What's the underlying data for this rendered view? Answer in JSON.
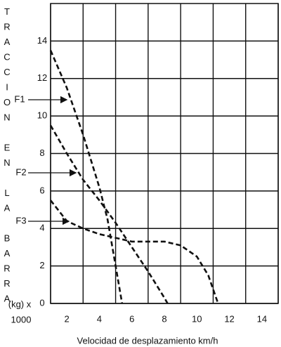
{
  "chart_data": {
    "type": "line",
    "ylabel": "TRACCION EN LA BARRA",
    "ylabel_unit": "(kg) x",
    "ylabel_scale": "1000",
    "xlabel": "Velocidad de desplazamiento km/h",
    "xlim": [
      1,
      15
    ],
    "ylim": [
      0,
      16
    ],
    "xticks": [
      2,
      4,
      6,
      8,
      10,
      12,
      14
    ],
    "xgrid": [
      1,
      3,
      5,
      7,
      9,
      11,
      13,
      15
    ],
    "yticks": [
      0,
      2,
      4,
      6,
      8,
      10,
      12,
      14
    ],
    "grid": true,
    "series": [
      {
        "name": "F1",
        "color": "#111111",
        "x": [
          1,
          2,
          3,
          4,
          4.5,
          5,
          5.4
        ],
        "values": [
          13.5,
          11.5,
          9.0,
          6.2,
          4.5,
          2.0,
          0
        ]
      },
      {
        "name": "F2",
        "color": "#111111",
        "x": [
          1,
          2,
          3,
          4,
          5,
          6,
          7,
          8,
          8.2
        ],
        "values": [
          9.5,
          8.0,
          6.6,
          5.5,
          4.3,
          3.0,
          1.7,
          0.3,
          0
        ]
      },
      {
        "name": "F3",
        "color": "#111111",
        "x": [
          1,
          2,
          3,
          4,
          5,
          6,
          7,
          8,
          9,
          10,
          10.7,
          11.3
        ],
        "values": [
          5.5,
          4.4,
          4.0,
          3.7,
          3.5,
          3.3,
          3.3,
          3.3,
          3.1,
          2.5,
          1.5,
          0
        ]
      }
    ]
  }
}
